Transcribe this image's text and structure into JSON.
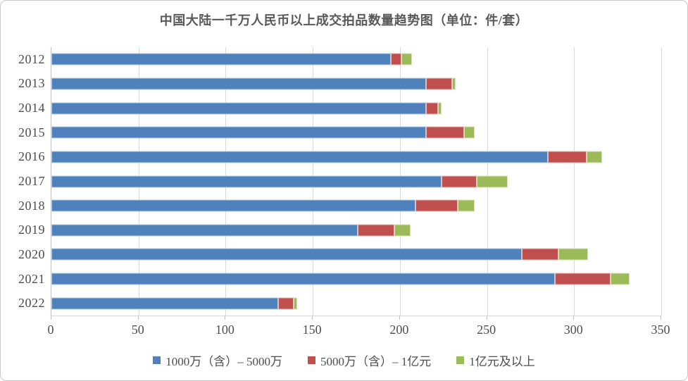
{
  "title": "中国大陆一千万人民币以上成交拍品数量趋势图（单位：件/套）",
  "colors": {
    "series_blue": "#4F81BD",
    "series_red": "#C0504D",
    "series_green": "#9BBB59",
    "series_blue_border": "#B9CDE5",
    "series_red_border": "#E6B9B8",
    "series_green_border": "#D7E4BD",
    "gridline": "#D9D9D9",
    "axis_text": "#4D4D4D",
    "title_text": "#595959"
  },
  "chart_data": {
    "type": "bar",
    "orientation": "horizontal",
    "stacked": true,
    "grid": true,
    "legend_position": "bottom",
    "title": "中国大陆一千万人民币以上成交拍品数量趋势图（单位：件/套）",
    "xlabel": "",
    "ylabel": "",
    "xlim": [
      0,
      350
    ],
    "xticks": [
      0,
      50,
      100,
      150,
      200,
      250,
      300,
      350
    ],
    "categories": [
      "2012",
      "2013",
      "2014",
      "2015",
      "2016",
      "2017",
      "2018",
      "2019",
      "2020",
      "2021",
      "2022"
    ],
    "series": [
      {
        "name": "1000万（含）– 5000万",
        "color": "#4F81BD",
        "border": "#B9CDE5",
        "values": [
          195,
          215,
          215,
          215,
          285,
          224,
          209,
          176,
          270,
          289,
          130
        ]
      },
      {
        "name": "5000万（含）– 1亿元",
        "color": "#C0504D",
        "border": "#E6B9B8",
        "values": [
          6,
          15,
          7,
          22,
          22,
          20,
          24,
          21,
          21,
          32,
          9
        ]
      },
      {
        "name": "1亿元及以上",
        "color": "#9BBB59",
        "border": "#D7E4BD",
        "values": [
          6,
          2,
          2,
          6,
          9,
          18,
          10,
          9,
          17,
          11,
          2
        ]
      }
    ],
    "totals": [
      207,
      232,
      224,
      243,
      316,
      262,
      243,
      206,
      308,
      332,
      141
    ]
  }
}
